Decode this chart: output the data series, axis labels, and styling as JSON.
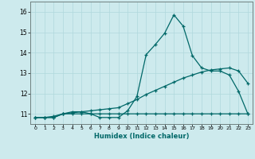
{
  "title": "",
  "xlabel": "Humidex (Indice chaleur)",
  "bg_color": "#cdeaed",
  "grid_color": "#b0d8dc",
  "line_color": "#006868",
  "xlim": [
    -0.5,
    23.5
  ],
  "ylim": [
    10.5,
    16.5
  ],
  "yticks": [
    11,
    12,
    13,
    14,
    15,
    16
  ],
  "xticks": [
    0,
    1,
    2,
    3,
    4,
    5,
    6,
    7,
    8,
    9,
    10,
    11,
    12,
    13,
    14,
    15,
    16,
    17,
    18,
    19,
    20,
    21,
    22,
    23
  ],
  "line1_x": [
    0,
    1,
    2,
    3,
    4,
    5,
    6,
    7,
    8,
    9,
    10,
    11,
    12,
    13,
    14,
    15,
    16,
    17,
    18,
    19,
    20,
    21,
    22,
    23
  ],
  "line1_y": [
    10.82,
    10.82,
    10.82,
    11.0,
    11.1,
    11.1,
    11.0,
    10.82,
    10.82,
    10.82,
    11.15,
    11.85,
    13.9,
    14.4,
    14.95,
    15.85,
    15.3,
    13.85,
    13.25,
    13.1,
    13.1,
    12.9,
    12.1,
    11.0
  ],
  "line2_x": [
    0,
    1,
    2,
    3,
    4,
    5,
    6,
    7,
    8,
    9,
    10,
    11,
    12,
    13,
    14,
    15,
    16,
    17,
    18,
    19,
    20,
    21,
    22,
    23
  ],
  "line2_y": [
    10.82,
    10.82,
    10.82,
    11.0,
    11.0,
    11.0,
    11.0,
    11.0,
    11.0,
    11.0,
    11.0,
    11.0,
    11.0,
    11.0,
    11.0,
    11.0,
    11.0,
    11.0,
    11.0,
    11.0,
    11.0,
    11.0,
    11.0,
    11.0
  ],
  "line3_x": [
    0,
    1,
    2,
    3,
    4,
    5,
    6,
    7,
    8,
    9,
    10,
    11,
    12,
    13,
    14,
    15,
    16,
    17,
    18,
    19,
    20,
    21,
    22,
    23
  ],
  "line3_y": [
    10.82,
    10.82,
    10.88,
    11.0,
    11.05,
    11.1,
    11.15,
    11.2,
    11.25,
    11.3,
    11.5,
    11.7,
    11.95,
    12.15,
    12.35,
    12.55,
    12.75,
    12.9,
    13.05,
    13.15,
    13.2,
    13.25,
    13.1,
    12.5
  ]
}
